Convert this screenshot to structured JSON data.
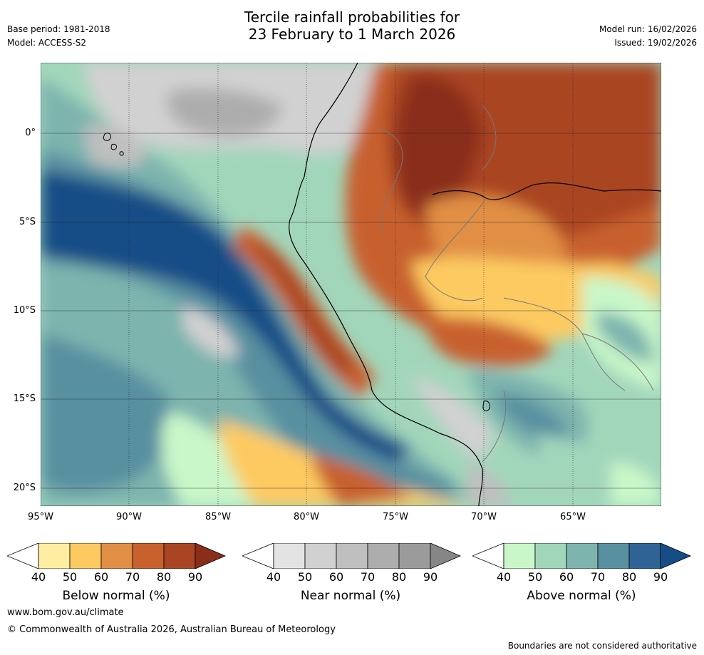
{
  "title_line1": "Tercile rainfall probabilities for",
  "title_line2": "23 February to 1 March 2026",
  "base_period": "Base period: 1981-2018",
  "model": "Model: ACCESS-S2",
  "model_run": "Model run: 16/02/2026",
  "issued": "Issued: 19/02/2026",
  "lat_labels": [
    "0°",
    "5°S",
    "10°S",
    "15°S",
    "20°S"
  ],
  "lon_labels": [
    "95°W",
    "90°W",
    "85°W",
    "80°W",
    "75°W",
    "70°W",
    "65°W"
  ],
  "colorbars": [
    {
      "name": "below",
      "title": "Below normal (%)",
      "ticks": [
        "40",
        "50",
        "60",
        "70",
        "80",
        "90"
      ],
      "colors": [
        "#ffeea1",
        "#fdca62",
        "#e18f45",
        "#c8612e",
        "#aa4523",
        "#8a2d1a"
      ]
    },
    {
      "name": "near",
      "title": "Near normal (%)",
      "ticks": [
        "40",
        "50",
        "60",
        "70",
        "80",
        "90"
      ],
      "colors": [
        "#e3e3e3",
        "#d1d1d1",
        "#bfbfbf",
        "#adadad",
        "#9b9b9b",
        "#868686"
      ]
    },
    {
      "name": "above",
      "title": "Above normal (%)",
      "ticks": [
        "40",
        "50",
        "60",
        "70",
        "80",
        "90"
      ],
      "colors": [
        "#c9f7c9",
        "#a2d6bb",
        "#7db4ae",
        "#5990a0",
        "#2f6395",
        "#174d86"
      ]
    }
  ],
  "footer_url": "www.bom.gov.au/climate",
  "footer_copyright": "© Commonwealth of Australia 2026, Australian Bureau of Meteorology",
  "footer_note": "Boundaries are not considered authoritative"
}
